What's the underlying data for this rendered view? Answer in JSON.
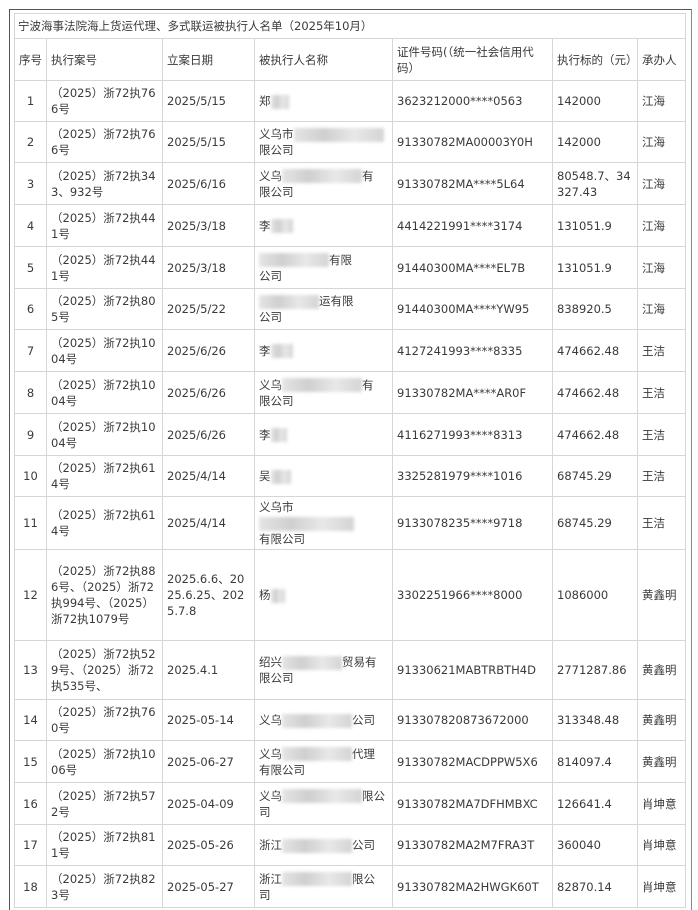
{
  "title": "宁波海事法院海上货运代理、多式联运被执行人名单（2025年10月）",
  "headers": [
    "序号",
    "执行案号",
    "立案日期",
    "被执行人名称",
    "证件号码(（统一社会信用代码）",
    "执行标的（元）",
    "承办人"
  ],
  "rows": [
    {
      "no": "1",
      "case": "（2025）浙72执766号",
      "date": "2025/5/15",
      "name_a": "郑",
      "name_b": "",
      "name_c": "",
      "id": "3623212000****0563",
      "amount": "142000",
      "handler": "江海"
    },
    {
      "no": "2",
      "case": "（2025）浙72执766号",
      "date": "2025/5/15",
      "name_a": "义乌市",
      "name_b": "",
      "name_c": "限公司",
      "id": "91330782MA00003Y0H",
      "amount": "142000",
      "handler": "江海"
    },
    {
      "no": "3",
      "case": "（2025）浙72执343、932号",
      "date": "2025/6/16",
      "name_a": "义乌",
      "name_b": "有",
      "name_c": "限公司",
      "id": "91330782MA****5L64",
      "amount": "80548.7、34327.43",
      "handler": "江海"
    },
    {
      "no": "4",
      "case": "（2025）浙72执441号",
      "date": "2025/3/18",
      "name_a": "李",
      "name_b": "",
      "name_c": "",
      "id": "4414221991****3174",
      "amount": "131051.9",
      "handler": "江海"
    },
    {
      "no": "5",
      "case": "（2025）浙72执441号",
      "date": "2025/3/18",
      "name_a": "",
      "name_b": "有限",
      "name_c": "公司",
      "id": "91440300MA****EL7B",
      "amount": "131051.9",
      "handler": "江海"
    },
    {
      "no": "6",
      "case": "（2025）浙72执805号",
      "date": "2025/5/22",
      "name_a": "",
      "name_b": "运有限",
      "name_c": "公司",
      "id": "91440300MA****YW95",
      "amount": "838920.5",
      "handler": "江海"
    },
    {
      "no": "7",
      "case": "（2025）浙72执1004号",
      "date": "2025/6/26",
      "name_a": "李",
      "name_b": "",
      "name_c": "",
      "id": "4127241993****8335",
      "amount": "474662.48",
      "handler": "王洁"
    },
    {
      "no": "8",
      "case": "（2025）浙72执1004号",
      "date": "2025/6/26",
      "name_a": "义乌",
      "name_b": "有",
      "name_c": "限公司",
      "id": "91330782MA****AR0F",
      "amount": "474662.48",
      "handler": "王洁"
    },
    {
      "no": "9",
      "case": "（2025）浙72执1004号",
      "date": "2025/6/26",
      "name_a": "李",
      "name_b": "",
      "name_c": "",
      "id": "4116271993****8313",
      "amount": "474662.48",
      "handler": "王洁"
    },
    {
      "no": "10",
      "case": "（2025）浙72执614号",
      "date": "2025/4/14",
      "name_a": "吴",
      "name_b": "",
      "name_c": "",
      "id": "3325281979****1016",
      "amount": "68745.29",
      "handler": "王洁"
    },
    {
      "no": "11",
      "case": "（2025）浙72执614号",
      "date": "2025/4/14",
      "name_a": "义乌市",
      "name_b": "",
      "name_c": "有限公司",
      "id": "9133078235****9718",
      "amount": "68745.29",
      "handler": "王洁"
    },
    {
      "no": "12",
      "case": "（2025）浙72执886号、（2025）浙72执994号、（2025）浙72执1079号",
      "date": "2025.6.6、2025.6.25、2025.7.8",
      "name_a": "杨",
      "name_b": "",
      "name_c": "",
      "id": "3302251966****8000",
      "amount": "1086000",
      "handler": "黄鑫明"
    },
    {
      "no": "13",
      "case": "（2025）浙72执529号、（2025）浙72执535号、",
      "date": "2025.4.1",
      "name_a": "绍兴",
      "name_b": "贸易有",
      "name_c": "限公司",
      "id": "91330621MABTRBTH4D",
      "amount": "2771287.86",
      "handler": "黄鑫明"
    },
    {
      "no": "14",
      "case": "（2025）浙72执760号",
      "date": "2025-05-14",
      "name_a": "义乌",
      "name_b": "公司",
      "name_c": "",
      "id": "913307820873672000",
      "amount": "313348.48",
      "handler": "黄鑫明"
    },
    {
      "no": "15",
      "case": "（2025）浙72执1006号",
      "date": "2025-06-27",
      "name_a": "义乌",
      "name_b": "代理",
      "name_c": "有限公司",
      "id": "91330782MACDPPW5X6",
      "amount": "814097.4",
      "handler": "黄鑫明"
    },
    {
      "no": "16",
      "case": "（2025）浙72执572号",
      "date": "2025-04-09",
      "name_a": "义乌",
      "name_b": "限公",
      "name_c": "司",
      "id": "91330782MA7DFHMBXC",
      "amount": "126641.4",
      "handler": "肖坤意"
    },
    {
      "no": "17",
      "case": "（2025）浙72执811号",
      "date": "2025-05-26",
      "name_a": "浙江",
      "name_b": "公司",
      "name_c": "",
      "id": "91330782MA2M7FRA3T",
      "amount": "360040",
      "handler": "肖坤意"
    },
    {
      "no": "18",
      "case": "（2025）浙72执823号",
      "date": "2025-05-27",
      "name_a": "浙江",
      "name_b": "限公",
      "name_c": "司",
      "id": "91330782MA2HWGK60T",
      "amount": "82870.14",
      "handler": "肖坤意"
    }
  ]
}
